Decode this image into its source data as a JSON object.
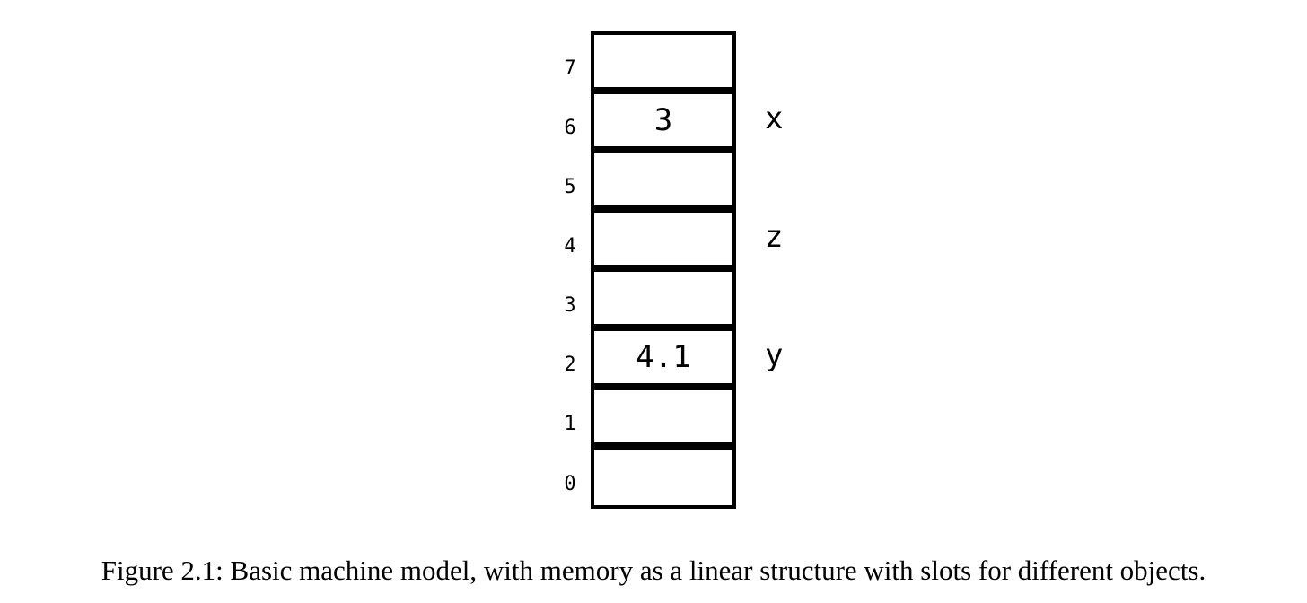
{
  "memory": {
    "slots": [
      {
        "address": "7",
        "value": "",
        "variable": ""
      },
      {
        "address": "6",
        "value": "3",
        "variable": "x"
      },
      {
        "address": "5",
        "value": "",
        "variable": ""
      },
      {
        "address": "4",
        "value": "",
        "variable": "z"
      },
      {
        "address": "3",
        "value": "",
        "variable": ""
      },
      {
        "address": "2",
        "value": "4.1",
        "variable": "y"
      },
      {
        "address": "1",
        "value": "",
        "variable": ""
      },
      {
        "address": "0",
        "value": "",
        "variable": ""
      }
    ]
  },
  "caption": "Figure 2.1: Basic machine model, with memory as a linear structure with slots for different objects."
}
